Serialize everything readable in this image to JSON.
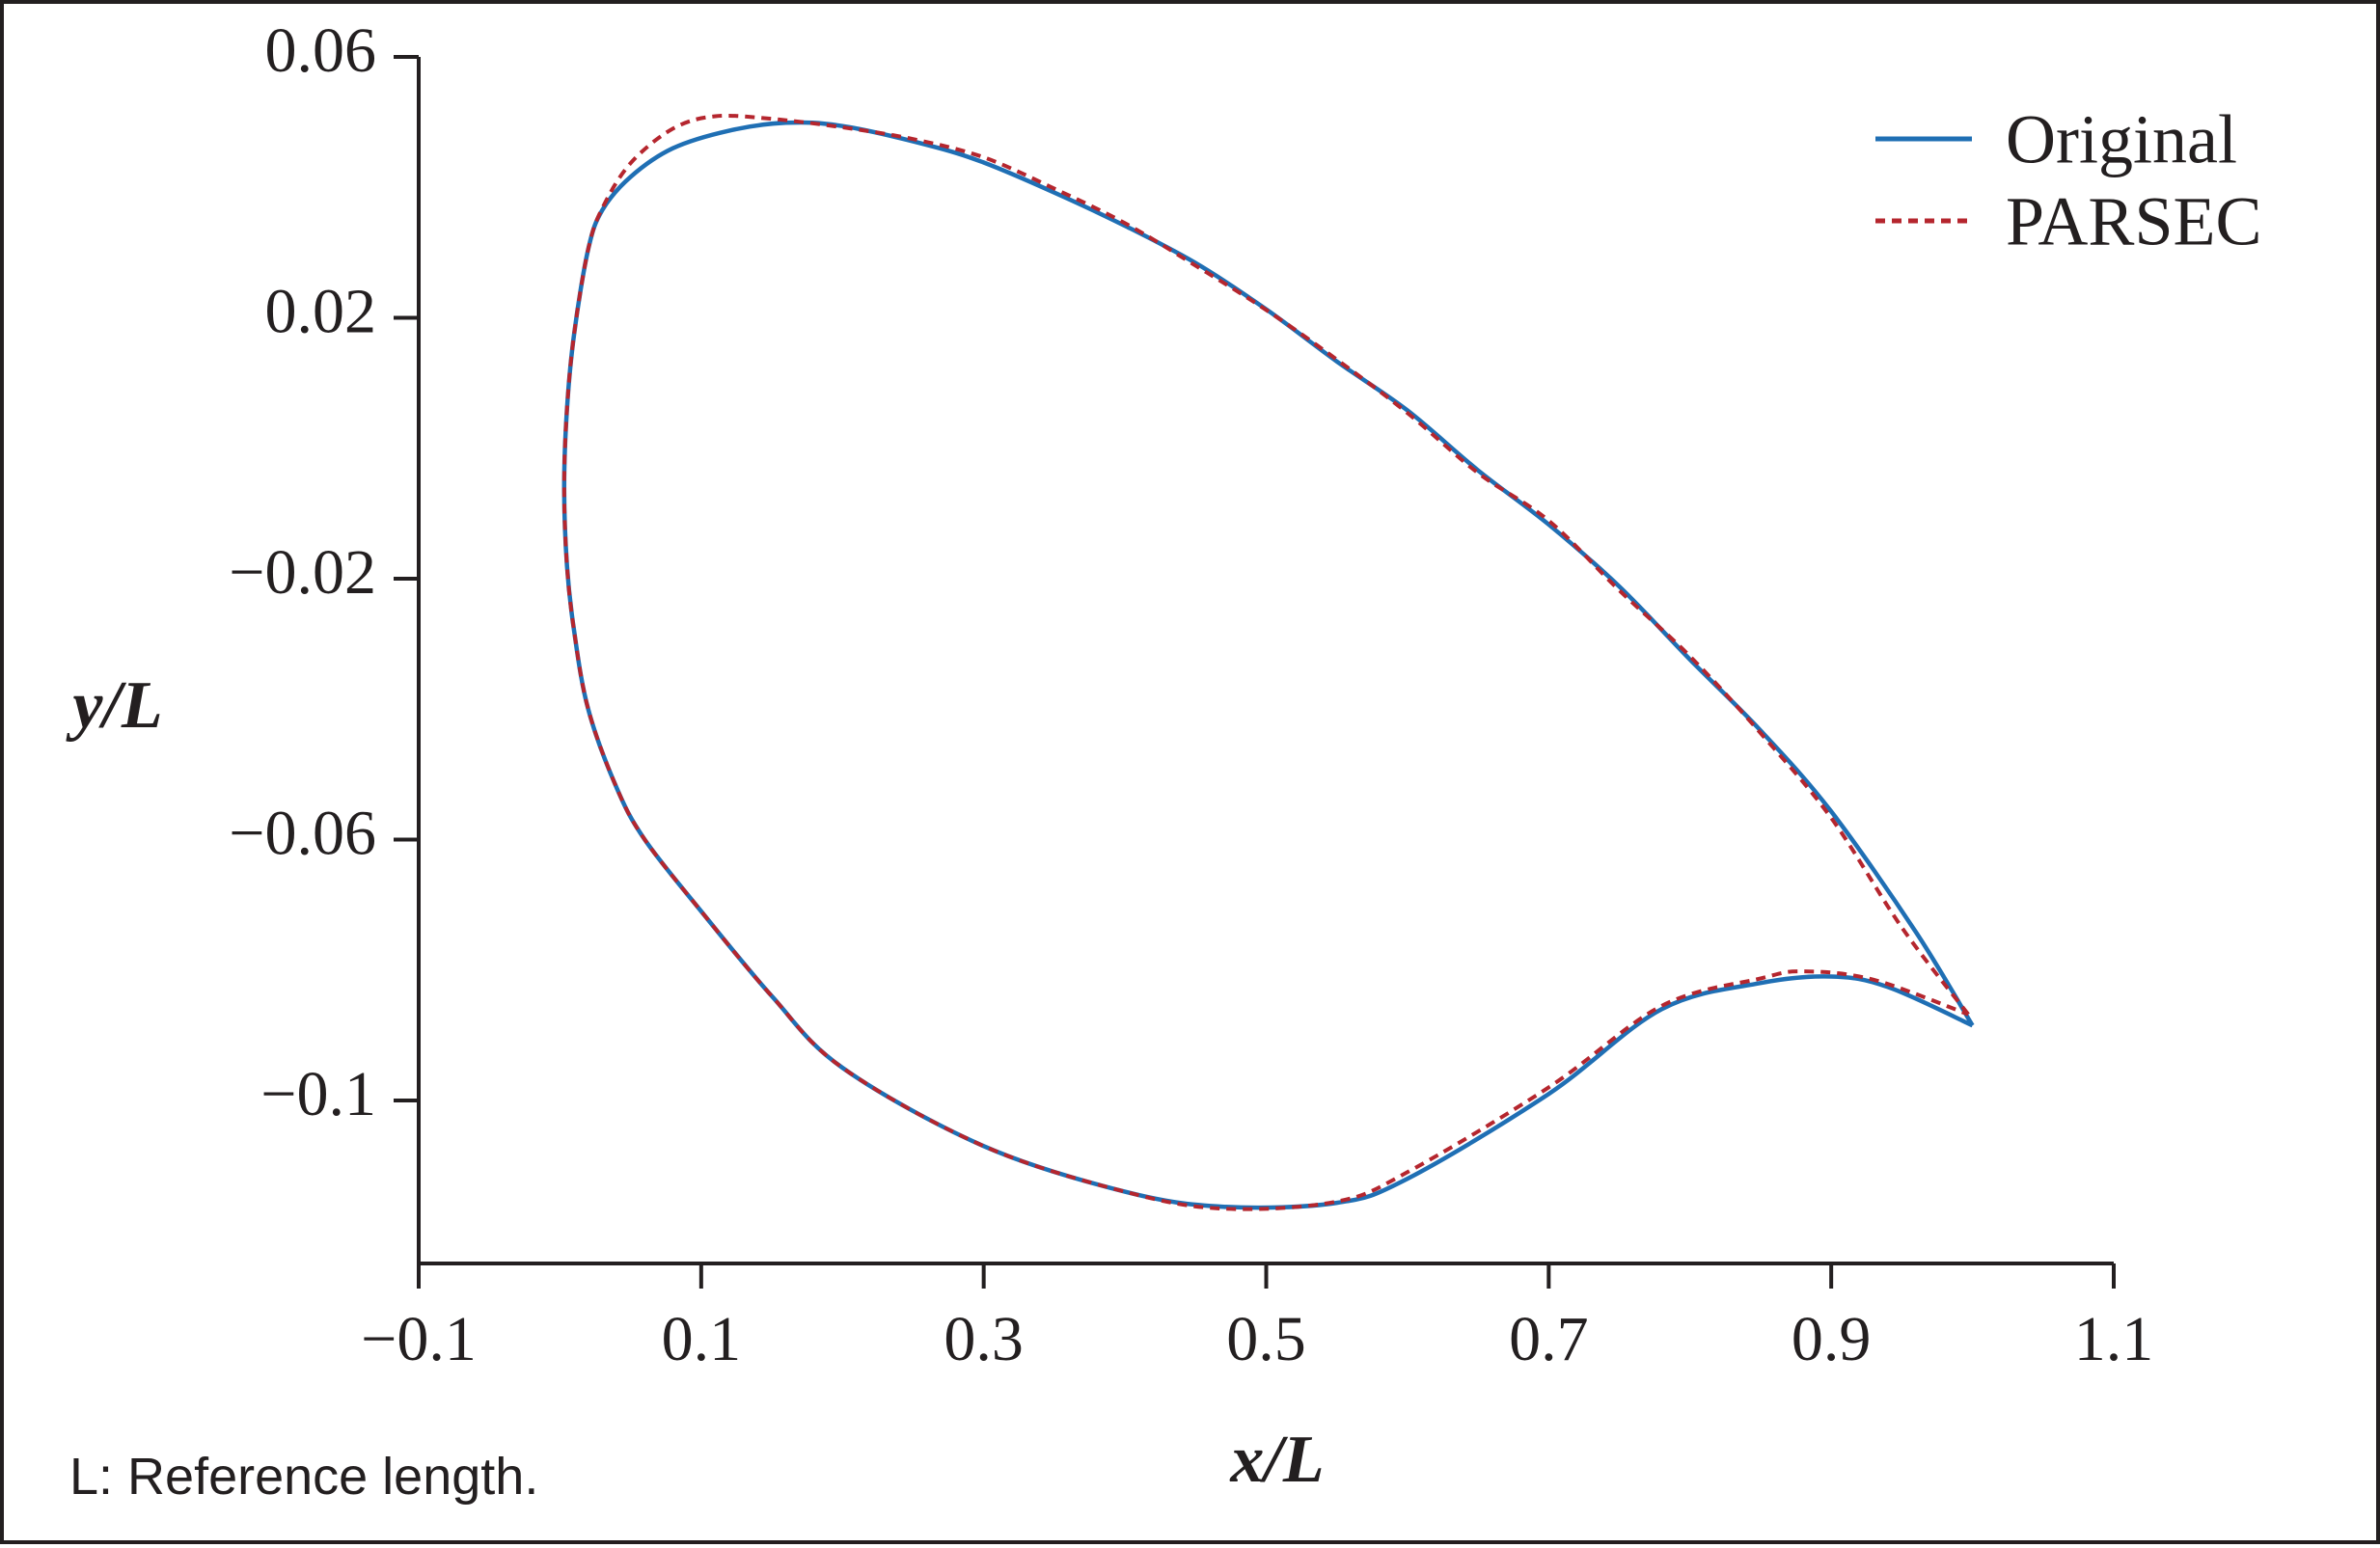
{
  "footnote": "L: Reference length.",
  "chart_data": {
    "type": "line",
    "xlabel": "x/L",
    "ylabel": "y/L",
    "xlim": [
      -0.1,
      1.1
    ],
    "ylim": [
      -0.125,
      0.06
    ],
    "x_ticks": [
      -0.1,
      0.1,
      0.3,
      0.5,
      0.7,
      0.9,
      1.1
    ],
    "x_tick_labels": [
      "−0.1",
      "0.1",
      "0.3",
      "0.5",
      "0.7",
      "0.9",
      "1.1"
    ],
    "y_ticks": [
      -0.1,
      -0.06,
      -0.02,
      0.02,
      0.06
    ],
    "y_tick_labels": [
      "−0.1",
      "−0.06",
      "−0.02",
      "0.02",
      "0.06"
    ],
    "legend_position": "top-right",
    "grid": false,
    "series": [
      {
        "name": "Original",
        "color": "#1f6fb4",
        "style": "solid",
        "x": [
          1.0,
          0.96,
          0.9,
          0.85,
          0.8,
          0.75,
          0.7,
          0.65,
          0.6,
          0.55,
          0.5,
          0.45,
          0.4,
          0.35,
          0.3,
          0.26,
          0.2,
          0.16,
          0.12,
          0.08,
          0.05,
          0.03,
          0.02,
          0.01,
          0.005,
          0.003,
          0.005,
          0.01,
          0.02,
          0.04,
          0.06,
          0.1,
          0.15,
          0.2,
          0.3,
          0.4,
          0.47,
          0.55,
          0.6,
          0.7,
          0.78,
          0.85,
          0.9,
          0.94,
          1.0
        ],
        "y": [
          -0.0885,
          -0.0742,
          -0.0557,
          -0.0433,
          -0.0324,
          -0.0212,
          -0.0117,
          -0.0034,
          0.0058,
          0.0133,
          0.0213,
          0.0284,
          0.0341,
          0.0392,
          0.0438,
          0.0465,
          0.0494,
          0.0499,
          0.0487,
          0.046,
          0.0416,
          0.0365,
          0.0305,
          0.0175,
          0.006,
          -0.006,
          -0.018,
          -0.028,
          -0.04,
          -0.052,
          -0.06,
          -0.071,
          -0.084,
          -0.095,
          -0.107,
          -0.114,
          -0.1163,
          -0.1157,
          -0.112,
          -0.099,
          -0.086,
          -0.082,
          -0.081,
          -0.0826,
          -0.0885
        ]
      },
      {
        "name": "PARSEC",
        "color": "#b5262e",
        "style": "dashed",
        "x": [
          0.997,
          0.95,
          0.9,
          0.85,
          0.8,
          0.75,
          0.7,
          0.65,
          0.6,
          0.55,
          0.5,
          0.45,
          0.4,
          0.35,
          0.3,
          0.25,
          0.2,
          0.15,
          0.11,
          0.08,
          0.05,
          0.03,
          0.02,
          0.01,
          0.005,
          0.003,
          0.005,
          0.01,
          0.02,
          0.04,
          0.06,
          0.1,
          0.15,
          0.2,
          0.3,
          0.4,
          0.47,
          0.55,
          0.6,
          0.7,
          0.78,
          0.85,
          0.88,
          0.93,
          0.997
        ],
        "y": [
          -0.0868,
          -0.0735,
          -0.0567,
          -0.0437,
          -0.0319,
          -0.0218,
          -0.0111,
          -0.0038,
          0.0054,
          0.0136,
          0.0212,
          0.028,
          0.0345,
          0.0398,
          0.0446,
          0.0474,
          0.0492,
          0.0505,
          0.0509,
          0.049,
          0.0437,
          0.0368,
          0.0305,
          0.0175,
          0.006,
          -0.006,
          -0.018,
          -0.028,
          -0.04,
          -0.052,
          -0.06,
          -0.071,
          -0.084,
          -0.095,
          -0.107,
          -0.114,
          -0.1166,
          -0.1155,
          -0.111,
          -0.098,
          -0.0855,
          -0.0813,
          -0.0802,
          -0.0815,
          -0.0868
        ]
      }
    ]
  }
}
